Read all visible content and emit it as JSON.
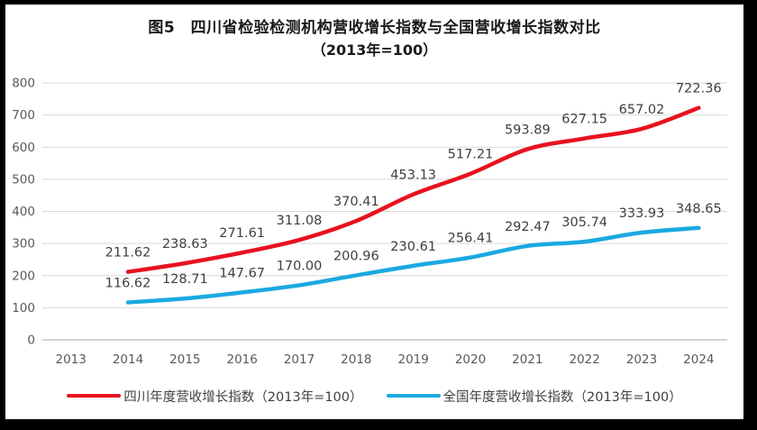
{
  "window": {
    "frame_color": "#000000",
    "card_color": "#ffffff"
  },
  "chart": {
    "title": "图5　四川省检验检测机构营收增长指数与全国营收增长指数对比",
    "subtitle": "（2013年=100）"
  },
  "chart_data": {
    "type": "line",
    "title": "图5　四川省检验检测机构营收增长指数与全国营收增长指数对比（2013年=100）",
    "categories": [
      "2013",
      "2014",
      "2015",
      "2016",
      "2017",
      "2018",
      "2019",
      "2020",
      "2021",
      "2022",
      "2023",
      "2024"
    ],
    "series": [
      {
        "name": "四川年度营收增长指数（2013年=100）",
        "color": "#e8121f",
        "x": [
          "2014",
          "2015",
          "2016",
          "2017",
          "2018",
          "2019",
          "2020",
          "2021",
          "2022",
          "2023",
          "2024"
        ],
        "values": [
          211.62,
          238.63,
          271.61,
          311.08,
          370.41,
          453.13,
          517.21,
          593.89,
          627.15,
          657.02,
          722.36
        ]
      },
      {
        "name": "全国年度营收增长指数（2013年=100）",
        "color": "#1ba9e1",
        "x": [
          "2014",
          "2015",
          "2016",
          "2017",
          "2018",
          "2019",
          "2020",
          "2021",
          "2022",
          "2023",
          "2024"
        ],
        "values": [
          116.62,
          128.71,
          147.67,
          170.0,
          200.96,
          230.61,
          256.41,
          292.47,
          305.74,
          333.93,
          348.65
        ]
      }
    ],
    "xlabel": "",
    "ylabel": "",
    "ylim": [
      0,
      800
    ],
    "yticks": [
      0,
      100,
      200,
      300,
      400,
      500,
      600,
      700,
      800
    ],
    "grid": true,
    "data_labels": true,
    "data_label_decimals": 2,
    "legend_position": "bottom",
    "gridline_color": "#d9d9d9",
    "axis_line_color": "#c6c6c6",
    "axis_label_color": "#595959",
    "data_label_color": "#3f3f3f"
  }
}
